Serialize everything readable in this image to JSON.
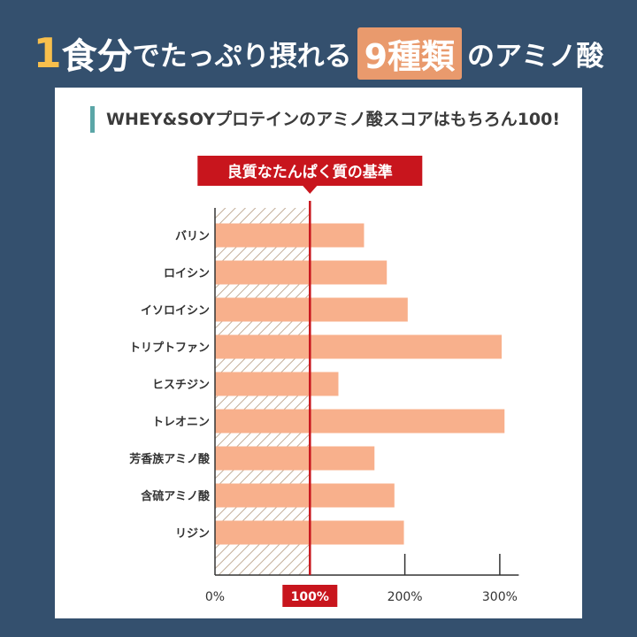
{
  "headline": {
    "part1": "1",
    "part2": "食分",
    "part3": "でたっぷり摂れる",
    "highlight_num": "9",
    "highlight_text": "種類",
    "part4": "のアミノ酸"
  },
  "chart_data": {
    "type": "bar",
    "title": "WHEY&SOYプロテインのアミノ酸スコアはもちろん100!",
    "reference_label": "良質なたんぱく質の基準",
    "reference_value": 100,
    "categories": [
      "バリン",
      "ロイシン",
      "イソロイシン",
      "トリプトファン",
      "ヒスチジン",
      "トレオニン",
      "芳香族アミノ酸",
      "含硫アミノ酸",
      "リジン"
    ],
    "values": [
      157,
      181,
      203,
      302,
      130,
      305,
      168,
      189,
      199
    ],
    "xlim": [
      0,
      320
    ],
    "xticks": [
      "0%",
      "100%",
      "200%",
      "300%"
    ],
    "xtick_values": [
      0,
      100,
      200,
      300
    ],
    "highlight_tick": "100%",
    "colors": {
      "bar": "#f8b08c",
      "reference_line": "#c8151d",
      "reference_box": "#c8151d",
      "hatch": "#c2ad98",
      "axis": "#333333"
    }
  }
}
